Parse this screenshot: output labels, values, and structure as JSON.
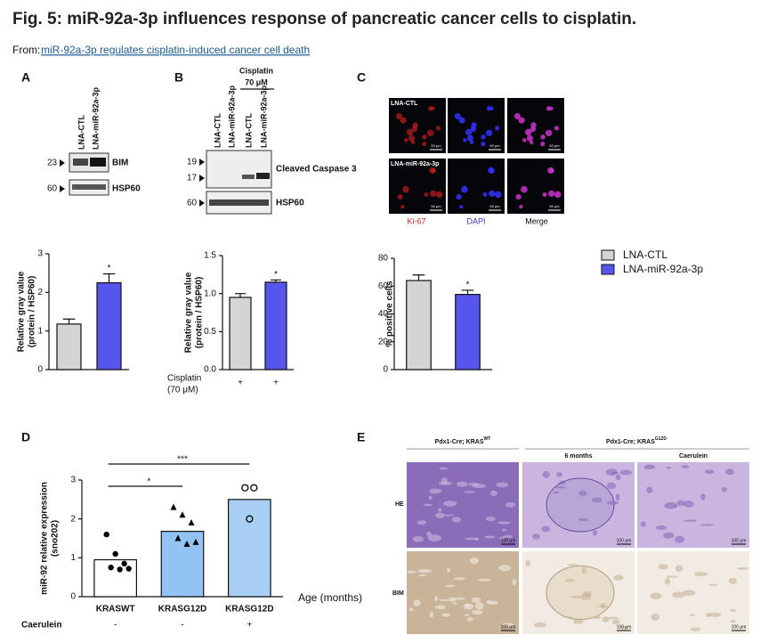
{
  "header": {
    "title": "Fig. 5: miR-92a-3p influences response of pancreatic cancer cells to cisplatin.",
    "from": "From:",
    "link": "miR-92a-3p regulates cisplatin-induced cancer cell death"
  },
  "panels": {
    "a": "A",
    "b": "B",
    "c": "C",
    "d": "D",
    "e": "E"
  },
  "blot_a": {
    "lanes": [
      "LNA-CTL",
      "LNA-miR-92a-3p"
    ],
    "markers": [
      "23",
      "60"
    ],
    "proteins": [
      "BIM",
      "HSP60"
    ]
  },
  "blot_b": {
    "treatment": "Cisplatin",
    "dose": "70 μM",
    "lanes": [
      "LNA-CTL",
      "LNA-miR-92a-3p",
      "LNA-CTL",
      "LNA-miR-92a-3p"
    ],
    "markers": [
      "19",
      "17",
      "60"
    ],
    "proteins": [
      "Cleaved Caspase 3",
      "HSP60"
    ]
  },
  "imaging_c": {
    "rows": [
      "LNA-CTL",
      "LNA-miR-92a-3p"
    ],
    "columns": [
      "Ki-67",
      "DAPI",
      "Merge"
    ],
    "scale": "50 μm"
  },
  "legend": [
    {
      "name": "LNA-CTL",
      "color": "#d4d4d4"
    },
    {
      "name": "LNA-miR-92a-3p",
      "color": "#5656ee"
    }
  ],
  "histology_e": {
    "groups": [
      {
        "label": "Pdx1-Cre; KRAS",
        "sup": "WT"
      },
      {
        "label": "Pdx1-Cre; KRAS",
        "sup": "G12D"
      }
    ],
    "subgroups": [
      "6 months",
      "Caerulein"
    ],
    "rows": [
      "HE",
      "BIM"
    ],
    "scale": "100 μm"
  },
  "chart_data": [
    {
      "type": "bar",
      "categories": [
        null,
        null
      ],
      "values": [
        1.18,
        2.25
      ],
      "errors": [
        0.13,
        0.23
      ],
      "colors": [
        "#d4d4d4",
        "#5656ee"
      ],
      "ylabel": [
        "Relative gray value",
        "(protein / HSP60)"
      ],
      "ylim": [
        0,
        3
      ],
      "yticks": [
        0,
        1,
        2,
        3
      ],
      "annotations": [
        "*"
      ]
    },
    {
      "type": "bar",
      "categories": [
        "+",
        "+"
      ],
      "xlabel": [
        "Cisplatin",
        "(70 μM)"
      ],
      "values": [
        0.95,
        1.15
      ],
      "errors": [
        0.05,
        0.03
      ],
      "colors": [
        "#d4d4d4",
        "#5656ee"
      ],
      "ylabel": [
        "Relative gray value",
        "(protein / HSP60)"
      ],
      "ylim": [
        0,
        1.5
      ],
      "yticks": [
        {
          "value": 0,
          "label": "0.0"
        },
        {
          "value": 0.5,
          "label": "0.5"
        },
        {
          "value": 1,
          "label": "1.0"
        },
        {
          "value": 1.5,
          "label": "1.5"
        }
      ],
      "annotations": [
        "*"
      ]
    },
    {
      "type": "bar",
      "categories": [
        null,
        null
      ],
      "values": [
        64,
        54
      ],
      "errors": [
        4,
        3
      ],
      "colors": [
        "#d4d4d4",
        "#5656ee"
      ],
      "ylabel": [
        "% positive cells"
      ],
      "ylim": [
        0,
        80
      ],
      "yticks": [
        0,
        20,
        40,
        60,
        80
      ],
      "annotations": [
        "*"
      ]
    },
    {
      "type": "bar",
      "categories": [
        "KRASWT",
        "KRASG12D",
        "KRASG12D"
      ],
      "values": [
        0.95,
        1.68,
        2.5
      ],
      "points": [
        [
          1.6,
          1.1,
          0.85,
          0.75,
          0.7,
          0.72
        ],
        [
          2.3,
          2.1,
          1.9,
          1.5,
          1.35,
          1.4
        ],
        [
          2.8,
          2.8,
          2.0
        ]
      ],
      "colors": [
        "#ffffff",
        "#92c3f3",
        "#a9cff5"
      ],
      "ylabel": [
        "miR-92 relative expression",
        "(sno202)"
      ],
      "xlabel": [
        "Age (months)"
      ],
      "row_label": "Caerulein",
      "row_values": [
        "-",
        "-",
        "+"
      ],
      "ylim": [
        0,
        3
      ],
      "yticks": [
        0,
        1,
        2,
        3
      ],
      "annotations": [
        "*",
        "***"
      ]
    }
  ]
}
